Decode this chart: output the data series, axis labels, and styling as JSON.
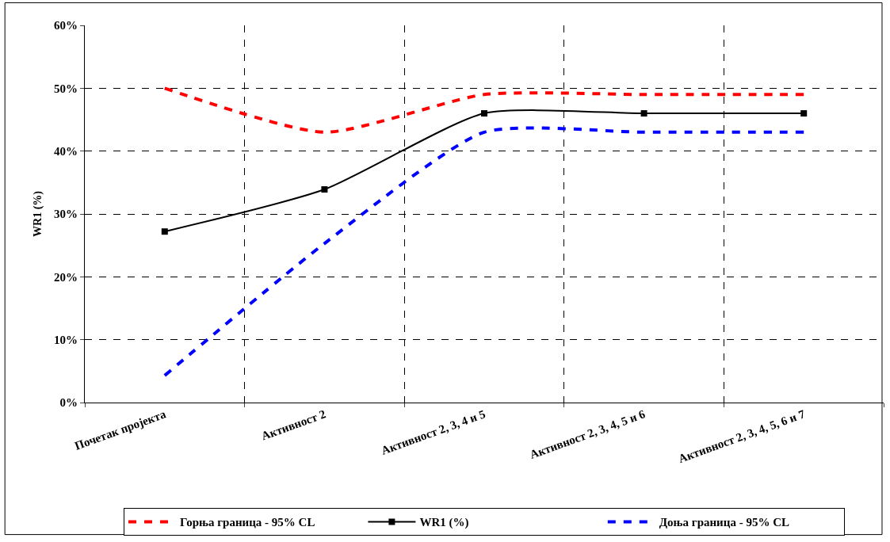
{
  "chart_data": {
    "type": "line",
    "ylabel": "WR1 (%)",
    "categories": [
      "Почетак пројекта",
      "Активност 2",
      "Активност 2, 3, 4 и 5",
      "Активност 2, 3, 4, 5 и 6",
      "Активност 2, 3, 4, 5, 6 и 7"
    ],
    "series": [
      {
        "name": "Горња граница - 95% CL",
        "color": "#ff0000",
        "values": [
          50,
          43,
          49,
          49,
          49
        ],
        "line_style": "dashed",
        "marker": "none"
      },
      {
        "name": "WR1 (%)",
        "color": "#000000",
        "values": [
          27.2,
          33.9,
          46,
          46,
          46
        ],
        "line_style": "solid",
        "marker": "square"
      },
      {
        "name": "Доња граница - 95% CL",
        "color": "#0000ff",
        "values": [
          4.3,
          25.3,
          43,
          43,
          43
        ],
        "line_style": "dashed",
        "marker": "none"
      }
    ],
    "ylim": [
      0,
      60
    ],
    "yticks": [
      {
        "value": 0,
        "label": "0%"
      },
      {
        "value": 10,
        "label": "10%"
      },
      {
        "value": 20,
        "label": "20%"
      },
      {
        "value": 30,
        "label": "30%"
      },
      {
        "value": 40,
        "label": "40%"
      },
      {
        "value": 50,
        "label": "50%"
      },
      {
        "value": 60,
        "label": "60%"
      }
    ],
    "grid": true,
    "legend": "bottom"
  }
}
